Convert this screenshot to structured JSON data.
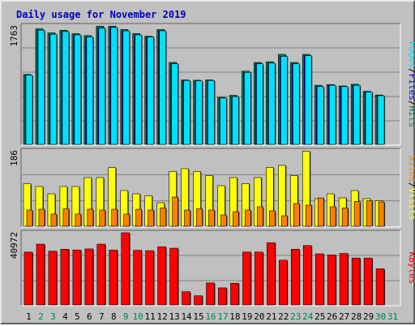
{
  "chart_data": {
    "title": "Daily usage for November 2019",
    "days": [
      "1",
      "2",
      "3",
      "4",
      "5",
      "6",
      "7",
      "8",
      "9",
      "10",
      "11",
      "12",
      "13",
      "14",
      "15",
      "16",
      "17",
      "18",
      "19",
      "20",
      "21",
      "22",
      "23",
      "24",
      "25",
      "26",
      "27",
      "28",
      "29",
      "30",
      "31"
    ],
    "weekend_days": [
      "2",
      "3",
      "9",
      "10",
      "16",
      "17",
      "23",
      "24",
      "30",
      "31"
    ],
    "colors": {
      "hits": "#00805c",
      "files": "#0000ff",
      "pages": "#00e0ff",
      "visits": "#ffff00",
      "sites": "#ff8000",
      "kbytes": "#ff0000",
      "weekday_label": "#000000",
      "weekend_label": "#00805c"
    },
    "charts": [
      {
        "type": "bar",
        "ymax_label": "1763",
        "ylim": [
          0,
          1763
        ],
        "legend": [
          {
            "text": "Pages",
            "color": "#00e0ff"
          },
          {
            "text": "/",
            "color": "#000000"
          },
          {
            "text": "Files",
            "color": "#0000ff"
          },
          {
            "text": "/",
            "color": "#000000"
          },
          {
            "text": "Hits",
            "color": "#00805c"
          }
        ],
        "series": [
          {
            "name": "Hits",
            "values": [
              1040,
              1720,
              1660,
              1700,
              1650,
              1620,
              1760,
              1760,
              1710,
              1650,
              1610,
              1710,
              1220,
              960,
              955,
              960,
              700,
              730,
              1090,
              1220,
              1230,
              1340,
              1220,
              1340,
              880,
              890,
              870,
              895,
              790,
              735,
              null
            ]
          },
          {
            "name": "Files",
            "values": [
              1030,
              1700,
              1640,
              1680,
              1630,
              1600,
              1730,
              1740,
              1690,
              1630,
              1600,
              1690,
              1200,
              950,
              945,
              950,
              690,
              710,
              1070,
              1200,
              1210,
              1310,
              1200,
              1320,
              860,
              880,
              860,
              880,
              780,
              725,
              null
            ]
          },
          {
            "name": "Pages",
            "values": [
              1030,
              1700,
              1640,
              1680,
              1630,
              1600,
              1730,
              1740,
              1690,
              1630,
              1600,
              1690,
              1200,
              950,
              945,
              950,
              690,
              710,
              1070,
              1200,
              1210,
              1310,
              1200,
              1320,
              860,
              880,
              860,
              880,
              780,
              725,
              null
            ]
          }
        ]
      },
      {
        "type": "bar",
        "ymax_label": "186",
        "ylim": [
          0,
          186
        ],
        "legend": [
          {
            "text": "Sites",
            "color": "#ff8000"
          },
          {
            "text": "/",
            "color": "#000000"
          },
          {
            "text": "Visits",
            "color": "#ffff00"
          }
        ],
        "series": [
          {
            "name": "Visits",
            "values": [
              105,
              98,
              80,
              98,
              98,
              120,
              120,
              145,
              88,
              80,
              75,
              58,
              135,
              142,
              135,
              125,
              100,
              120,
              105,
              120,
              145,
              150,
              125,
              185,
              68,
              80,
              70,
              88,
              68,
              63,
              null
            ]
          },
          {
            "name": "Sites",
            "values": [
              40,
              42,
              30,
              43,
              30,
              42,
              40,
              42,
              30,
              42,
              40,
              45,
              72,
              40,
              43,
              40,
              28,
              36,
              40,
              48,
              38,
              26,
              56,
              52,
              70,
              48,
              45,
              61,
              63,
              60,
              null
            ]
          }
        ]
      },
      {
        "type": "bar",
        "ymax_label": "40972",
        "ylim": [
          0,
          40972
        ],
        "legend": [
          {
            "text": "KBytes",
            "color": "#ff0000"
          }
        ],
        "series": [
          {
            "name": "KBytes",
            "values": [
              30000,
              34500,
              30500,
              31600,
              31200,
              31800,
              34500,
              31100,
              40972,
              31000,
              30800,
              33000,
              32200,
              7500,
              5200,
              12500,
              9700,
              12300,
              30000,
              30000,
              35300,
              25400,
              31600,
              33700,
              29000,
              28400,
              29200,
              26600,
              26600,
              20500,
              null
            ]
          }
        ]
      }
    ]
  }
}
